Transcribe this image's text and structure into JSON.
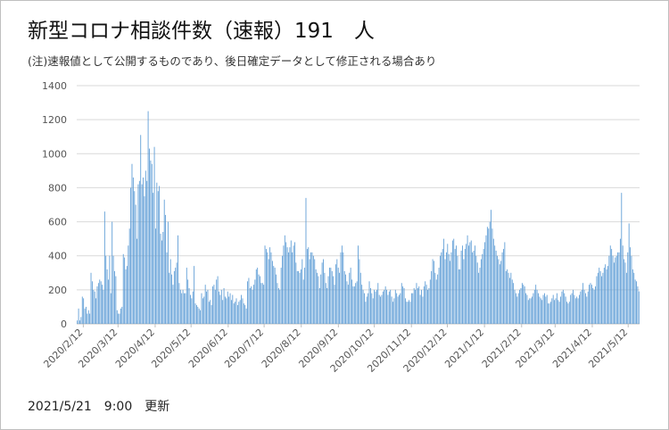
{
  "title": "新型コロナ相談件数（速報）191　人",
  "note": "(注)速報値として公開するものであり、後日確定データとして修正される場合あり",
  "footer": "2021/5/21　9:00　更新",
  "colors": {
    "bar": "#5b9bd5",
    "grid": "#d9d9d9",
    "axis": "#bfbfbf"
  },
  "chart_data": {
    "type": "bar",
    "title": "",
    "xlabel": "",
    "ylabel": "",
    "ylim": [
      0,
      1400
    ],
    "yticks": [
      0,
      200,
      400,
      600,
      800,
      1000,
      1200,
      1400
    ],
    "grid": true,
    "x_start": "2020/2/7",
    "x_end": "2021/5/21",
    "xtick_labels": [
      "2020/2/12",
      "2020/3/12",
      "2020/4/12",
      "2020/5/12",
      "2020/6/12",
      "2020/7/12",
      "2020/8/12",
      "2020/9/12",
      "2020/10/12",
      "2020/11/12",
      "2020/12/12",
      "2021/1/12",
      "2021/2/12",
      "2021/3/12",
      "2021/4/12",
      "2021/5/12"
    ],
    "series": [
      {
        "values": [
          20,
          90,
          20,
          40,
          160,
          150,
          90,
          100,
          60,
          80,
          60,
          300,
          250,
          200,
          190,
          150,
          220,
          240,
          260,
          250,
          230,
          200,
          660,
          400,
          320,
          260,
          400,
          180,
          600,
          400,
          310,
          280,
          80,
          60,
          60,
          90,
          100,
          410,
          390,
          320,
          340,
          460,
          560,
          800,
          940,
          860,
          780,
          700,
          500,
          820,
          840,
          1110,
          820,
          860,
          750,
          900,
          840,
          1250,
          1030,
          960,
          940,
          770,
          1040,
          560,
          830,
          780,
          810,
          530,
          490,
          540,
          730,
          640,
          420,
          600,
          300,
          380,
          290,
          230,
          310,
          330,
          360,
          520,
          240,
          200,
          180,
          200,
          180,
          180,
          330,
          260,
          210,
          170,
          150,
          190,
          340,
          120,
          110,
          100,
          90,
          80,
          180,
          150,
          160,
          230,
          190,
          200,
          130,
          140,
          110,
          220,
          230,
          200,
          260,
          280,
          190,
          170,
          200,
          140,
          210,
          160,
          150,
          190,
          160,
          180,
          140,
          170,
          120,
          130,
          150,
          110,
          130,
          140,
          170,
          150,
          120,
          110,
          90,
          250,
          270,
          210,
          220,
          200,
          230,
          260,
          320,
          330,
          290,
          280,
          240,
          240,
          230,
          460,
          440,
          420,
          380,
          450,
          420,
          370,
          340,
          330,
          290,
          240,
          210,
          200,
          330,
          400,
          460,
          520,
          480,
          450,
          420,
          450,
          490,
          420,
          460,
          480,
          360,
          310,
          310,
          300,
          320,
          380,
          260,
          330,
          740,
          440,
          450,
          380,
          420,
          420,
          400,
          380,
          320,
          300,
          280,
          210,
          290,
          360,
          380,
          300,
          240,
          210,
          280,
          330,
          330,
          310,
          280,
          230,
          350,
          380,
          330,
          300,
          420,
          460,
          420,
          310,
          290,
          250,
          230,
          300,
          330,
          260,
          220,
          220,
          240,
          250,
          460,
          380,
          300,
          230,
          200,
          180,
          130,
          160,
          180,
          250,
          210,
          180,
          150,
          200,
          190,
          200,
          240,
          170,
          160,
          170,
          190,
          200,
          220,
          200,
          170,
          190,
          200,
          160,
          130,
          150,
          200,
          180,
          160,
          170,
          180,
          240,
          220,
          210,
          150,
          130,
          130,
          140,
          130,
          180,
          180,
          210,
          200,
          240,
          210,
          220,
          170,
          200,
          160,
          220,
          250,
          230,
          200,
          210,
          260,
          310,
          380,
          370,
          300,
          260,
          290,
          330,
          400,
          420,
          440,
          500,
          380,
          420,
          470,
          410,
          370,
          420,
          490,
          500,
          440,
          460,
          400,
          320,
          320,
          430,
          460,
          380,
          440,
          470,
          520,
          460,
          480,
          490,
          420,
          430,
          460,
          400,
          360,
          300,
          330,
          380,
          410,
          440,
          480,
          520,
          570,
          560,
          600,
          670,
          560,
          500,
          460,
          430,
          400,
          380,
          350,
          370,
          420,
          440,
          480,
          310,
          320,
          300,
          270,
          300,
          260,
          240,
          200,
          180,
          160,
          180,
          200,
          210,
          240,
          230,
          220,
          180,
          170,
          140,
          150,
          150,
          160,
          180,
          200,
          230,
          200,
          180,
          160,
          150,
          140,
          170,
          180,
          160,
          170,
          120,
          120,
          130,
          150,
          170,
          140,
          150,
          180,
          140,
          130,
          160,
          190,
          200,
          180,
          160,
          130,
          120,
          130,
          170,
          180,
          200,
          170,
          150,
          160,
          150,
          170,
          190,
          200,
          240,
          200,
          180,
          160,
          190,
          230,
          240,
          230,
          210,
          200,
          220,
          280,
          300,
          330,
          310,
          280,
          300,
          330,
          350,
          320,
          340,
          400,
          460,
          440,
          400,
          360,
          390,
          400,
          420,
          420,
          500,
          770,
          460,
          380,
          360,
          300,
          420,
          590,
          450,
          400,
          320,
          300,
          260,
          250,
          220,
          191
        ]
      }
    ]
  }
}
